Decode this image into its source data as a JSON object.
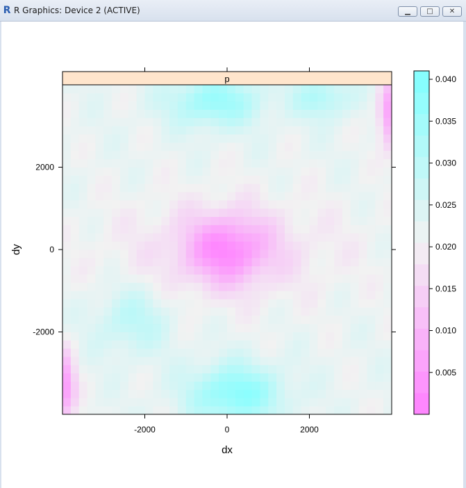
{
  "window": {
    "title": "R Graphics: Device 2 (ACTIVE)",
    "minimize_icon": "minimize-icon",
    "maximize_icon": "maximize-icon",
    "close_icon": "close-icon"
  },
  "chart_data": {
    "type": "heatmap",
    "strip_label": "p",
    "xlabel": "dx",
    "ylabel": "dy",
    "xlim": [
      -4000,
      4000
    ],
    "ylim": [
      -4000,
      4000
    ],
    "x_ticks": [
      -2000,
      0,
      2000
    ],
    "y_ticks": [
      -2000,
      0,
      2000
    ],
    "x_tick_labels": [
      "-2000",
      "0",
      "2000"
    ],
    "y_tick_labels": [
      "-2000",
      "0",
      "2000"
    ],
    "colorkey": {
      "range": [
        0.0,
        0.041
      ],
      "ticks": [
        0.005,
        0.01,
        0.015,
        0.02,
        0.025,
        0.03,
        0.035,
        0.04
      ],
      "tick_labels": [
        "0.005",
        "0.010",
        "0.015",
        "0.020",
        "0.025",
        "0.030",
        "0.035",
        "0.040"
      ],
      "low_color": "#ff80ff",
      "mid_color": "#f2f2f2",
      "high_color": "#80ffff"
    },
    "strip_color": "#ffe5cc",
    "grid": false
  }
}
